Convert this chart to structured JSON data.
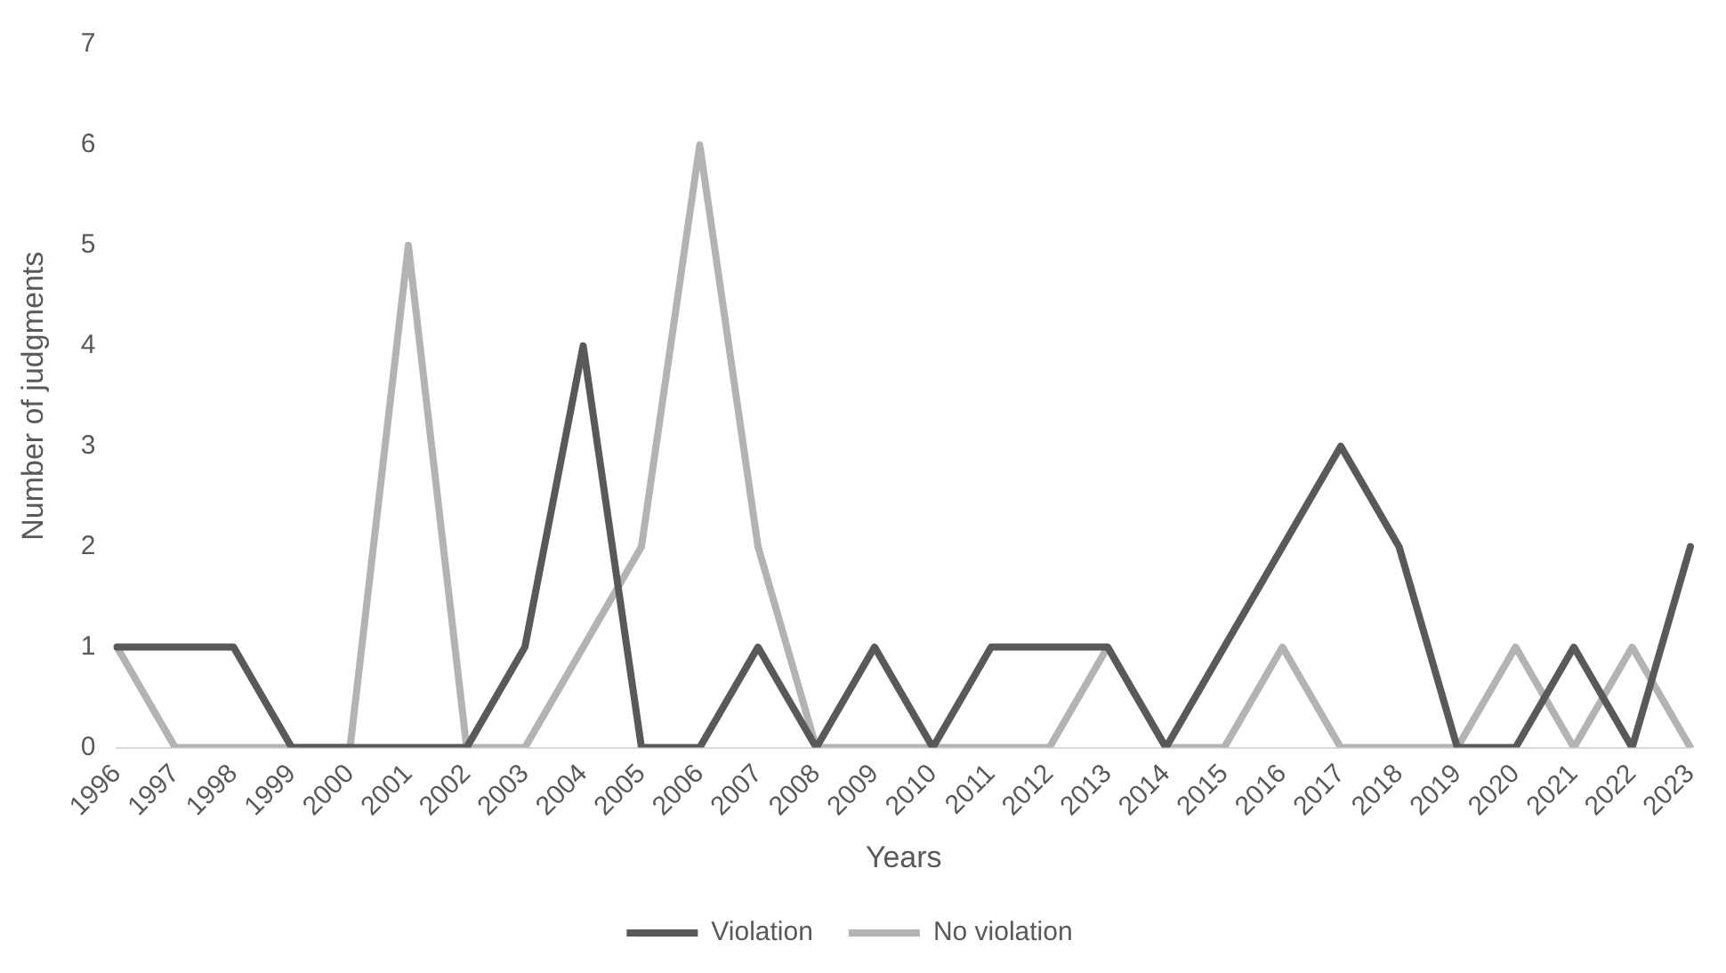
{
  "chart_data": {
    "type": "line",
    "xlabel": "Years",
    "ylabel": "Number of judgments",
    "categories": [
      "1996",
      "1997",
      "1998",
      "1999",
      "2000",
      "2001",
      "2002",
      "2003",
      "2004",
      "2005",
      "2006",
      "2007",
      "2008",
      "2009",
      "2010",
      "2011",
      "2012",
      "2013",
      "2014",
      "2015",
      "2016",
      "2017",
      "2018",
      "2019",
      "2020",
      "2021",
      "2022",
      "2023"
    ],
    "series": [
      {
        "name": "Violation",
        "color": "#595959",
        "values": [
          1,
          1,
          1,
          0,
          0,
          0,
          0,
          1,
          4,
          0,
          0,
          1,
          0,
          1,
          0,
          1,
          1,
          1,
          0,
          1,
          2,
          3,
          2,
          0,
          0,
          1,
          0,
          2
        ]
      },
      {
        "name": "No violation",
        "color": "#b3b3b3",
        "values": [
          1,
          0,
          0,
          0,
          0,
          5,
          0,
          0,
          1,
          2,
          6,
          2,
          0,
          0,
          0,
          0,
          0,
          1,
          0,
          0,
          1,
          0,
          0,
          0,
          1,
          0,
          1,
          0
        ]
      }
    ],
    "ylim": [
      0,
      7
    ],
    "yticks": [
      0,
      1,
      2,
      3,
      4,
      5,
      6,
      7
    ],
    "grid": false,
    "legend": "bottom",
    "marker": "none",
    "line_style": "solid"
  }
}
